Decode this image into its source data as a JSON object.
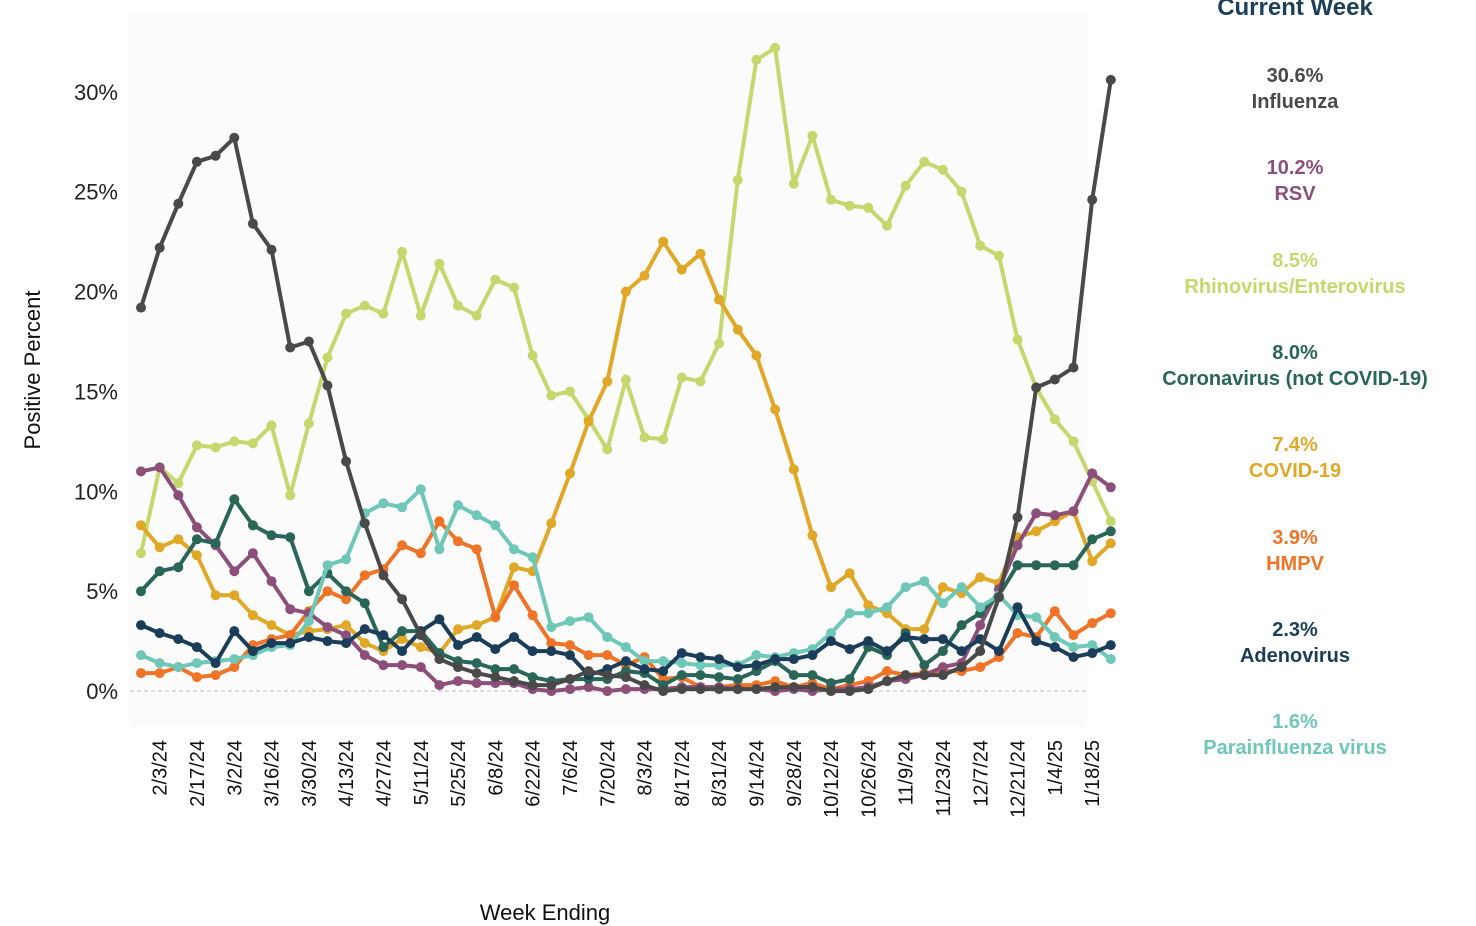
{
  "chart_data": {
    "type": "line",
    "title": "",
    "xlabel": "Week Ending",
    "ylabel": "Positive Percent",
    "ylim": [
      -1.8,
      34.0
    ],
    "yticks": [
      0,
      5,
      10,
      15,
      20,
      25,
      30
    ],
    "ytick_labels": [
      "0%",
      "5%",
      "10%",
      "15%",
      "20%",
      "25%",
      "30%"
    ],
    "x_tick_labels": [
      "2/3/24",
      "2/17/24",
      "3/2/24",
      "3/16/24",
      "3/30/24",
      "4/13/24",
      "4/27/24",
      "5/11/24",
      "5/25/24",
      "6/8/24",
      "6/22/24",
      "7/6/24",
      "7/20/24",
      "8/3/24",
      "8/17/24",
      "8/31/24",
      "9/14/24",
      "9/28/24",
      "10/12/24",
      "10/26/24",
      "11/9/24",
      "11/23/24",
      "12/7/24",
      "12/21/24",
      "1/4/25",
      "1/18/25"
    ],
    "x": [
      "1/27/24",
      "2/3/24",
      "2/10/24",
      "2/17/24",
      "2/24/24",
      "3/2/24",
      "3/9/24",
      "3/16/24",
      "3/23/24",
      "3/30/24",
      "4/6/24",
      "4/13/24",
      "4/20/24",
      "4/27/24",
      "5/4/24",
      "5/11/24",
      "5/18/24",
      "5/25/24",
      "6/1/24",
      "6/8/24",
      "6/15/24",
      "6/22/24",
      "6/29/24",
      "7/6/24",
      "7/13/24",
      "7/20/24",
      "7/27/24",
      "8/3/24",
      "8/10/24",
      "8/17/24",
      "8/24/24",
      "8/31/24",
      "9/7/24",
      "9/14/24",
      "9/21/24",
      "9/28/24",
      "10/5/24",
      "10/12/24",
      "10/19/24",
      "10/26/24",
      "11/2/24",
      "11/9/24",
      "11/16/24",
      "11/23/24",
      "11/30/24",
      "12/7/24",
      "12/14/24",
      "12/21/24",
      "12/28/24",
      "1/4/25",
      "1/11/25",
      "1/18/25",
      "1/25/25"
    ],
    "series": [
      {
        "name": "Rhinovirus/Enterovirus",
        "color": "#c5d86d",
        "values": [
          6.9,
          11.2,
          10.4,
          12.3,
          12.2,
          12.5,
          12.4,
          13.3,
          9.8,
          13.4,
          16.7,
          18.9,
          19.3,
          18.9,
          22.0,
          18.8,
          21.4,
          19.3,
          18.8,
          20.6,
          20.2,
          16.8,
          14.8,
          15.0,
          13.6,
          12.1,
          15.6,
          12.7,
          12.6,
          15.7,
          15.5,
          17.4,
          25.6,
          31.6,
          32.2,
          25.4,
          27.8,
          24.6,
          24.3,
          24.2,
          23.3,
          25.3,
          26.5,
          26.1,
          25.0,
          22.3,
          21.8,
          17.6,
          15.2,
          13.6,
          12.5,
          10.5,
          8.5
        ]
      },
      {
        "name": "COVID-19",
        "color": "#e1a828",
        "values": [
          8.3,
          7.2,
          7.6,
          6.8,
          4.8,
          4.8,
          3.8,
          3.3,
          2.8,
          3.0,
          3.1,
          3.3,
          2.4,
          2.0,
          2.6,
          2.2,
          1.9,
          3.1,
          3.3,
          3.7,
          6.2,
          6.0,
          8.4,
          10.9,
          13.5,
          15.5,
          20.0,
          20.8,
          22.5,
          21.1,
          21.9,
          19.6,
          18.1,
          16.8,
          14.1,
          11.1,
          7.8,
          5.2,
          5.9,
          4.3,
          3.9,
          3.1,
          3.1,
          5.2,
          4.9,
          5.7,
          5.4,
          7.7,
          8.0,
          8.5,
          9.0,
          6.5,
          7.4
        ]
      },
      {
        "name": "HMPV",
        "color": "#f07427",
        "values": [
          0.9,
          0.9,
          1.2,
          0.7,
          0.8,
          1.2,
          2.3,
          2.6,
          2.8,
          4.0,
          5.0,
          4.6,
          5.8,
          6.1,
          7.3,
          6.9,
          8.5,
          7.5,
          7.1,
          3.7,
          5.3,
          3.8,
          2.4,
          2.3,
          1.8,
          1.8,
          1.3,
          1.7,
          0.6,
          0.7,
          0.2,
          0.2,
          0.3,
          0.3,
          0.5,
          0.2,
          0.4,
          0.1,
          0.3,
          0.5,
          1.0,
          0.8,
          0.9,
          1.0,
          1.0,
          1.2,
          1.7,
          2.9,
          2.7,
          4.0,
          2.8,
          3.4,
          3.9
        ]
      },
      {
        "name": "RSV",
        "color": "#8b4f7a",
        "values": [
          11.0,
          11.2,
          9.8,
          8.2,
          7.3,
          6.0,
          6.9,
          5.5,
          4.1,
          3.9,
          3.2,
          2.8,
          1.8,
          1.3,
          1.3,
          1.2,
          0.3,
          0.5,
          0.4,
          0.4,
          0.4,
          0.1,
          0.0,
          0.1,
          0.2,
          0.0,
          0.1,
          0.1,
          0.1,
          0.2,
          0.2,
          0.2,
          0.1,
          0.1,
          0.0,
          0.1,
          0.0,
          0.1,
          0.1,
          0.2,
          0.5,
          0.6,
          0.8,
          1.2,
          1.4,
          3.3,
          5.1,
          7.3,
          8.9,
          8.8,
          9.0,
          10.9,
          10.2
        ]
      },
      {
        "name": "Coronavirus (not COVID-19)",
        "color": "#2a6657",
        "values": [
          5.0,
          6.0,
          6.2,
          7.6,
          7.4,
          9.6,
          8.3,
          7.8,
          7.7,
          5.0,
          5.9,
          5.0,
          4.4,
          2.2,
          3.0,
          3.0,
          1.9,
          1.5,
          1.4,
          1.1,
          1.1,
          0.7,
          0.5,
          0.6,
          0.6,
          0.6,
          1.0,
          0.9,
          0.3,
          0.8,
          0.8,
          0.7,
          0.6,
          1.0,
          1.5,
          0.8,
          0.8,
          0.4,
          0.6,
          2.2,
          1.8,
          2.9,
          1.3,
          2.0,
          3.3,
          3.9,
          4.8,
          6.3,
          6.3,
          6.3,
          6.3,
          7.6,
          8.0
        ]
      },
      {
        "name": "Parainfluenza virus",
        "color": "#6fc7b8",
        "values": [
          1.8,
          1.4,
          1.2,
          1.4,
          1.5,
          1.6,
          1.8,
          2.2,
          2.3,
          3.5,
          6.3,
          6.6,
          8.9,
          9.4,
          9.2,
          10.1,
          7.1,
          9.3,
          8.8,
          8.3,
          7.1,
          6.7,
          3.2,
          3.5,
          3.7,
          2.7,
          2.2,
          1.5,
          1.5,
          1.4,
          1.3,
          1.3,
          1.3,
          1.8,
          1.7,
          1.9,
          2.1,
          2.9,
          3.9,
          3.9,
          4.2,
          5.2,
          5.5,
          4.4,
          5.2,
          4.2,
          4.8,
          3.8,
          3.7,
          2.7,
          2.2,
          2.3,
          1.6
        ]
      },
      {
        "name": "Adenovirus",
        "color": "#1c3d5a",
        "values": [
          3.3,
          2.9,
          2.6,
          2.2,
          1.4,
          3.0,
          2.0,
          2.4,
          2.4,
          2.7,
          2.5,
          2.4,
          3.1,
          2.8,
          2.0,
          3.0,
          3.6,
          2.3,
          2.7,
          2.1,
          2.7,
          2.0,
          2.0,
          1.8,
          0.8,
          1.1,
          1.5,
          1.1,
          1.0,
          1.9,
          1.7,
          1.6,
          1.2,
          1.3,
          1.6,
          1.6,
          1.8,
          2.5,
          2.1,
          2.5,
          2.0,
          2.7,
          2.6,
          2.6,
          2.0,
          2.6,
          2.0,
          4.2,
          2.5,
          2.2,
          1.7,
          1.9,
          2.3
        ]
      },
      {
        "name": "Influenza",
        "color": "#494949",
        "values": [
          19.2,
          22.2,
          24.4,
          26.5,
          26.8,
          27.7,
          23.4,
          22.1,
          17.2,
          17.5,
          15.3,
          11.5,
          8.4,
          5.8,
          4.6,
          2.8,
          1.6,
          1.2,
          0.9,
          0.7,
          0.5,
          0.3,
          0.3,
          0.6,
          1.0,
          0.8,
          0.7,
          0.3,
          0.0,
          0.1,
          0.1,
          0.1,
          0.1,
          0.1,
          0.2,
          0.2,
          0.2,
          0.0,
          0.0,
          0.1,
          0.5,
          0.8,
          0.8,
          0.8,
          1.2,
          2.0,
          4.7,
          8.7,
          15.2,
          15.6,
          16.2,
          24.6,
          30.6
        ]
      }
    ]
  },
  "legend": {
    "title": "Current Week",
    "items": [
      {
        "pct": "30.6%",
        "name": "Influenza",
        "color": "#494949"
      },
      {
        "pct": "10.2%",
        "name": "RSV",
        "color": "#8b4f7a"
      },
      {
        "pct": "8.5%",
        "name": "Rhinovirus/Enterovirus",
        "color": "#c5d86d"
      },
      {
        "pct": "8.0%",
        "name": "Coronavirus (not COVID-19)",
        "color": "#2a6657"
      },
      {
        "pct": "7.4%",
        "name": "COVID-19",
        "color": "#e1a828"
      },
      {
        "pct": "3.9%",
        "name": "HMPV",
        "color": "#f07427"
      },
      {
        "pct": "2.3%",
        "name": "Adenovirus",
        "color": "#1c3d5a"
      },
      {
        "pct": "1.6%",
        "name": "Parainfluenza virus",
        "color": "#6fc7b8"
      }
    ]
  }
}
